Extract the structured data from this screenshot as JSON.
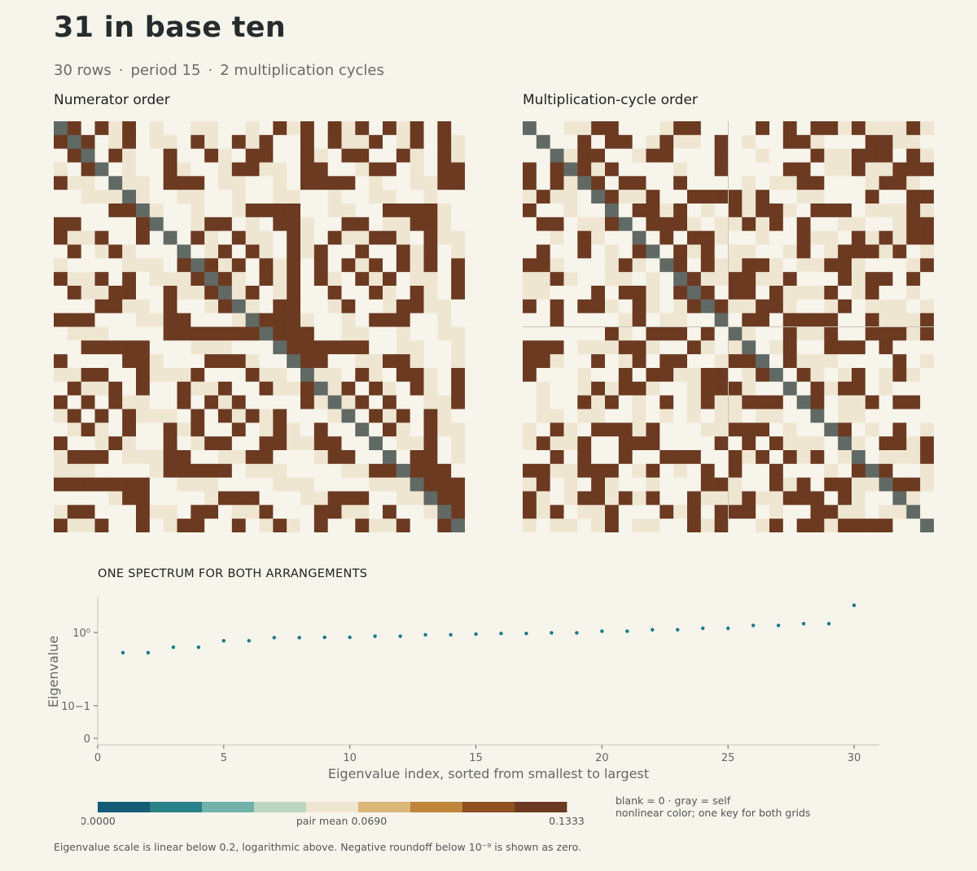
{
  "title": "31 in base ten",
  "subtitle": {
    "rows": "30 rows",
    "period": "period 15",
    "cycles": "2 multiplication cycles",
    "separator": "·"
  },
  "panels": {
    "left_label": "Numerator order",
    "right_label": "Multiplication-cycle order"
  },
  "spectrum_title": "ONE SPECTRUM FOR BOTH ARRANGEMENTS",
  "colors": {
    "background": "#f7f4ec",
    "dark": "#6b3a21",
    "light": "#efe6d2",
    "blank": "#f7f4ec",
    "self": "#616964",
    "point": "#167a85"
  },
  "chart_data": [
    {
      "type": "heatmap",
      "title": "Numerator order",
      "n": 30,
      "description_of_values": "cell levels 0=blank, 1=light, 2=dark"
    },
    {
      "type": "heatmap",
      "title": "Multiplication-cycle order",
      "n": 30
    },
    {
      "type": "scatter",
      "title": "ONE SPECTRUM FOR BOTH ARRANGEMENTS",
      "xlabel": "Eigenvalue index, sorted from smallest to largest",
      "ylabel": "Eigenvalue",
      "xlim": [
        0,
        31
      ],
      "xticks": [
        "0",
        "5",
        "10",
        "15",
        "20",
        "25",
        "30"
      ],
      "yticks": [
        "0",
        "10−1",
        "10⁰"
      ],
      "x": [
        1,
        2,
        3,
        4,
        5,
        6,
        7,
        8,
        9,
        10,
        11,
        12,
        13,
        14,
        15,
        16,
        17,
        18,
        19,
        20,
        21,
        22,
        23,
        24,
        25,
        26,
        27,
        28,
        29,
        30
      ],
      "y": [
        0.53,
        0.53,
        0.63,
        0.63,
        0.77,
        0.77,
        0.85,
        0.85,
        0.86,
        0.86,
        0.89,
        0.89,
        0.93,
        0.93,
        0.95,
        0.97,
        0.97,
        0.99,
        0.99,
        1.04,
        1.04,
        1.09,
        1.09,
        1.14,
        1.14,
        1.25,
        1.25,
        1.32,
        1.32,
        2.35
      ]
    }
  ],
  "colorkey": {
    "min_label": "0.0000",
    "mid_label": "pair mean 0.0690",
    "max_label": "0.1333",
    "colors": [
      "#155c76",
      "#2a8288",
      "#72b2aa",
      "#bcd6c4",
      "#efe6d2",
      "#dbb879",
      "#be853d",
      "#8f5020",
      "#6b3a21"
    ],
    "note_line1": "blank = 0 · gray = self",
    "note_line2": "nonlinear color; one key for both grids"
  },
  "footnote": "Eigenvalue scale is linear below 0.2, logarithmic above. Negative roundoff below 10⁻⁹ is shown as zero."
}
